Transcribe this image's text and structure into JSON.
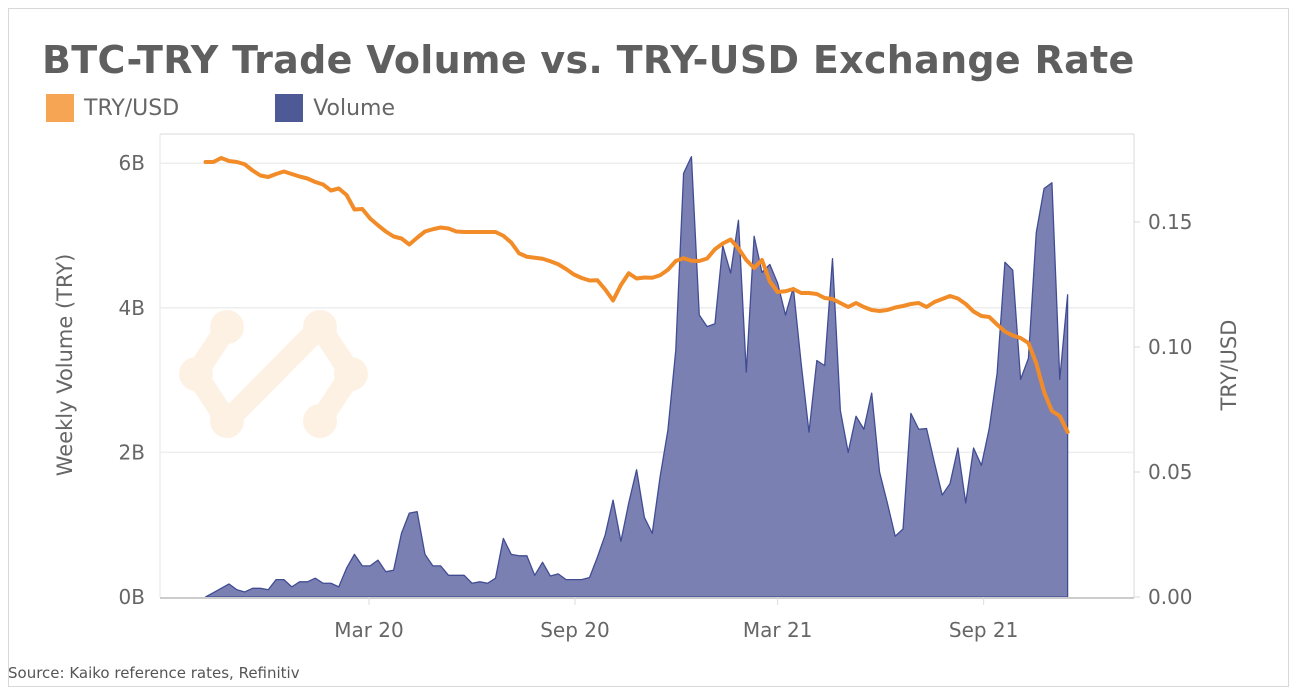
{
  "title": "BTC-TRY Trade Volume vs. TRY-USD Exchange Rate",
  "source": "Source: Kaiko reference rates, Refinitiv",
  "logo": "Kaiko",
  "colors": {
    "rate_line": "#F28C28",
    "rate_legend": "#F5A553",
    "volume_fill": "#7A81B2",
    "volume_stroke": "#414C93",
    "volume_legend": "#4D5A96",
    "watermark": "#FDF1E4"
  },
  "chart_data": {
    "type": "area+line",
    "title": "BTC-TRY Trade Volume vs. TRY-USD Exchange Rate",
    "legend": {
      "placement": "top-left",
      "entries": [
        "TRY/USD",
        "Volume"
      ]
    },
    "grid": true,
    "x_ticks": [
      {
        "date": "2020-03-01",
        "label": "Mar 20"
      },
      {
        "date": "2020-09-01",
        "label": "Sep 20"
      },
      {
        "date": "2021-03-01",
        "label": "Mar 21"
      },
      {
        "date": "2021-09-01",
        "label": "Sep 21"
      }
    ],
    "y_left": {
      "label": "Weekly Volume (TRY)",
      "unit": "B",
      "range": [
        0,
        6
      ],
      "ticks": [
        "0B",
        "2B",
        "4B",
        "6B"
      ],
      "tick_values": [
        0,
        2,
        4,
        6
      ]
    },
    "y_right": {
      "label": "TRY/USD",
      "range": [
        0,
        0.15
      ],
      "ticks": [
        "0.00",
        "0.05",
        "0.10",
        "0.15"
      ],
      "tick_values": [
        0,
        0.05,
        0.1,
        0.15
      ]
    },
    "x": [
      "2019-10-07",
      "2019-10-14",
      "2019-10-21",
      "2019-10-28",
      "2019-11-04",
      "2019-11-11",
      "2019-11-18",
      "2019-11-25",
      "2019-12-02",
      "2019-12-09",
      "2019-12-16",
      "2019-12-23",
      "2019-12-30",
      "2020-01-06",
      "2020-01-13",
      "2020-01-20",
      "2020-01-27",
      "2020-02-03",
      "2020-02-10",
      "2020-02-17",
      "2020-02-24",
      "2020-03-02",
      "2020-03-09",
      "2020-03-16",
      "2020-03-23",
      "2020-03-30",
      "2020-04-06",
      "2020-04-13",
      "2020-04-20",
      "2020-04-27",
      "2020-05-04",
      "2020-05-11",
      "2020-05-18",
      "2020-05-25",
      "2020-06-01",
      "2020-06-08",
      "2020-06-15",
      "2020-06-22",
      "2020-06-29",
      "2020-07-06",
      "2020-07-13",
      "2020-07-20",
      "2020-07-27",
      "2020-08-03",
      "2020-08-10",
      "2020-08-17",
      "2020-08-24",
      "2020-08-31",
      "2020-09-07",
      "2020-09-14",
      "2020-09-21",
      "2020-09-28",
      "2020-10-05",
      "2020-10-12",
      "2020-10-19",
      "2020-10-26",
      "2020-11-02",
      "2020-11-09",
      "2020-11-16",
      "2020-11-23",
      "2020-11-30",
      "2020-12-07",
      "2020-12-14",
      "2020-12-21",
      "2020-12-28",
      "2021-01-04",
      "2021-01-11",
      "2021-01-18",
      "2021-01-25",
      "2021-02-01",
      "2021-02-08",
      "2021-02-15",
      "2021-02-22",
      "2021-03-01",
      "2021-03-08",
      "2021-03-15",
      "2021-03-22",
      "2021-03-29",
      "2021-04-05",
      "2021-04-12",
      "2021-04-19",
      "2021-04-26",
      "2021-05-03",
      "2021-05-10",
      "2021-05-17",
      "2021-05-24",
      "2021-05-31",
      "2021-06-07",
      "2021-06-14",
      "2021-06-21",
      "2021-06-28",
      "2021-07-05",
      "2021-07-12",
      "2021-07-19",
      "2021-07-26",
      "2021-08-02",
      "2021-08-09",
      "2021-08-16",
      "2021-08-23",
      "2021-08-30",
      "2021-09-06",
      "2021-09-13",
      "2021-09-20",
      "2021-09-27",
      "2021-10-04",
      "2021-10-11",
      "2021-10-18",
      "2021-10-25",
      "2021-11-01",
      "2021-11-08",
      "2021-11-15"
    ],
    "series": [
      {
        "name": "Volume",
        "axis": "left",
        "type": "area",
        "values": [
          0,
          0.06,
          0.12,
          0.18,
          0.1,
          0.07,
          0.12,
          0.12,
          0.1,
          0.24,
          0.24,
          0.14,
          0.21,
          0.21,
          0.26,
          0.19,
          0.19,
          0.14,
          0.4,
          0.59,
          0.43,
          0.43,
          0.51,
          0.35,
          0.37,
          0.88,
          1.16,
          1.18,
          0.59,
          0.43,
          0.43,
          0.3,
          0.3,
          0.3,
          0.19,
          0.21,
          0.19,
          0.26,
          0.81,
          0.59,
          0.57,
          0.57,
          0.3,
          0.48,
          0.29,
          0.32,
          0.24,
          0.24,
          0.24,
          0.27,
          0.55,
          0.86,
          1.34,
          0.77,
          1.3,
          1.76,
          1.1,
          0.88,
          1.66,
          2.31,
          3.41,
          5.86,
          6.09,
          3.9,
          3.74,
          3.78,
          4.86,
          4.48,
          5.21,
          3.11,
          4.99,
          4.49,
          4.6,
          4.34,
          3.9,
          4.28,
          3.23,
          2.28,
          3.27,
          3.2,
          4.68,
          2.58,
          2.0,
          2.5,
          2.32,
          2.82,
          1.73,
          1.3,
          0.84,
          0.94,
          2.54,
          2.32,
          2.33,
          1.86,
          1.41,
          1.57,
          2.06,
          1.3,
          2.06,
          1.82,
          2.33,
          3.09,
          4.63,
          4.52,
          3.01,
          3.3,
          5.04,
          5.65,
          5.73,
          3.01,
          4.18
        ]
      },
      {
        "name": "TRY/USD",
        "axis": "right",
        "type": "line",
        "values": [
          0.174,
          0.174,
          0.1756,
          0.1744,
          0.174,
          0.1731,
          0.1706,
          0.1686,
          0.168,
          0.1692,
          0.1702,
          0.1692,
          0.1682,
          0.1674,
          0.166,
          0.165,
          0.1626,
          0.1634,
          0.1608,
          0.155,
          0.1552,
          0.1514,
          0.1487,
          0.1462,
          0.1442,
          0.1434,
          0.141,
          0.1437,
          0.1462,
          0.1471,
          0.1478,
          0.1474,
          0.1462,
          0.146,
          0.146,
          0.146,
          0.146,
          0.146,
          0.1445,
          0.1418,
          0.1375,
          0.1361,
          0.1357,
          0.1353,
          0.1343,
          0.1331,
          0.1312,
          0.129,
          0.1276,
          0.1266,
          0.1267,
          0.123,
          0.1186,
          0.1248,
          0.1295,
          0.1274,
          0.1278,
          0.1277,
          0.1287,
          0.1309,
          0.1344,
          0.1355,
          0.1345,
          0.1344,
          0.1354,
          0.1391,
          0.1414,
          0.143,
          0.1394,
          0.1348,
          0.1316,
          0.1348,
          0.1262,
          0.122,
          0.1223,
          0.1232,
          0.1216,
          0.1216,
          0.1212,
          0.1196,
          0.1192,
          0.1176,
          0.116,
          0.1176,
          0.116,
          0.1148,
          0.1144,
          0.1148,
          0.1158,
          0.1164,
          0.1172,
          0.1176,
          0.116,
          0.118,
          0.1192,
          0.1204,
          0.1194,
          0.1172,
          0.1142,
          0.1124,
          0.112,
          0.109,
          0.1062,
          0.1046,
          0.1036,
          0.1016,
          0.0935,
          0.082,
          0.0744,
          0.0724,
          0.066
        ]
      }
    ]
  }
}
